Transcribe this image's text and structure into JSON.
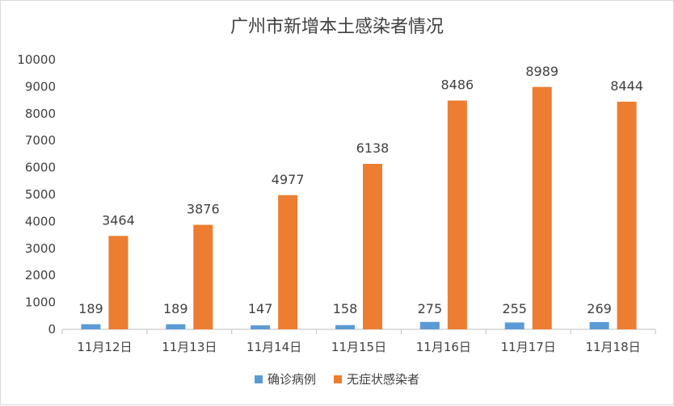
{
  "chart_data": {
    "type": "bar",
    "title": "广州市新增本土感染者情况",
    "categories": [
      "11月12日",
      "11月13日",
      "11月14日",
      "11月15日",
      "11月16日",
      "11月17日",
      "11月18日"
    ],
    "series": [
      {
        "name": "确诊病例",
        "color": "#5b9bd5",
        "values": [
          189,
          189,
          147,
          158,
          275,
          255,
          269
        ]
      },
      {
        "name": "无症状感染者",
        "color": "#ed7d31",
        "values": [
          3464,
          3876,
          4977,
          6138,
          8486,
          8989,
          8444
        ]
      }
    ],
    "ylim": [
      0,
      10000
    ],
    "yticks": [
      "0",
      "1000",
      "2000",
      "3000",
      "4000",
      "5000",
      "6000",
      "7000",
      "8000",
      "9000",
      "10000"
    ],
    "grid": false,
    "legend": "bottom"
  }
}
